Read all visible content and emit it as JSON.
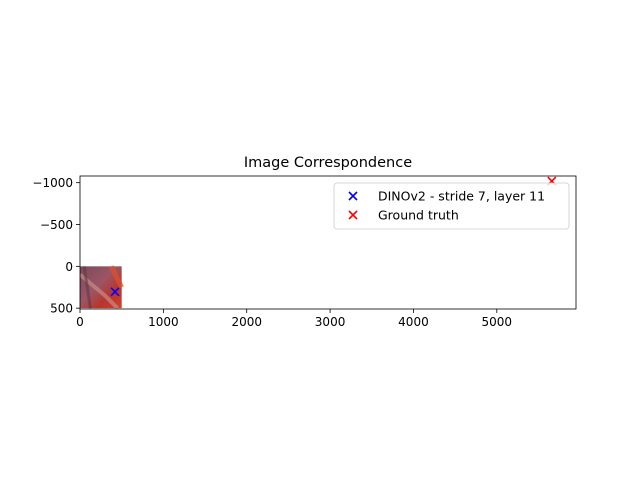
{
  "chart_data": {
    "type": "scatter",
    "title": "Image Correspondence",
    "xlabel": "",
    "ylabel": "",
    "xlim": [
      0,
      5950
    ],
    "ylim": [
      510,
      -1080
    ],
    "y_inverted": true,
    "grid": false,
    "legend_position": "upper-right",
    "x_ticks": [
      0,
      1000,
      2000,
      3000,
      4000,
      5000
    ],
    "x_tick_labels": [
      "0",
      "1000",
      "2000",
      "3000",
      "4000",
      "5000"
    ],
    "y_ticks": [
      -1000,
      -500,
      0,
      500
    ],
    "y_tick_labels": [
      "−1000",
      "−500",
      "0",
      "500"
    ],
    "background_image": {
      "extent_x": [
        0,
        500
      ],
      "extent_y": [
        0,
        500
      ],
      "description_colors": [
        "#7a4a5c",
        "#b8352c",
        "#d0402c",
        "#9c5564"
      ]
    },
    "series": [
      {
        "name": "DINOv2 - stride 7, layer 11",
        "marker": "x",
        "color": "#0000ff",
        "points": [
          {
            "x": 420,
            "y": 305
          }
        ]
      },
      {
        "name": "Ground truth",
        "marker": "x",
        "color": "#ff0000",
        "points": [
          {
            "x": 5660,
            "y": -1020
          }
        ]
      }
    ]
  }
}
